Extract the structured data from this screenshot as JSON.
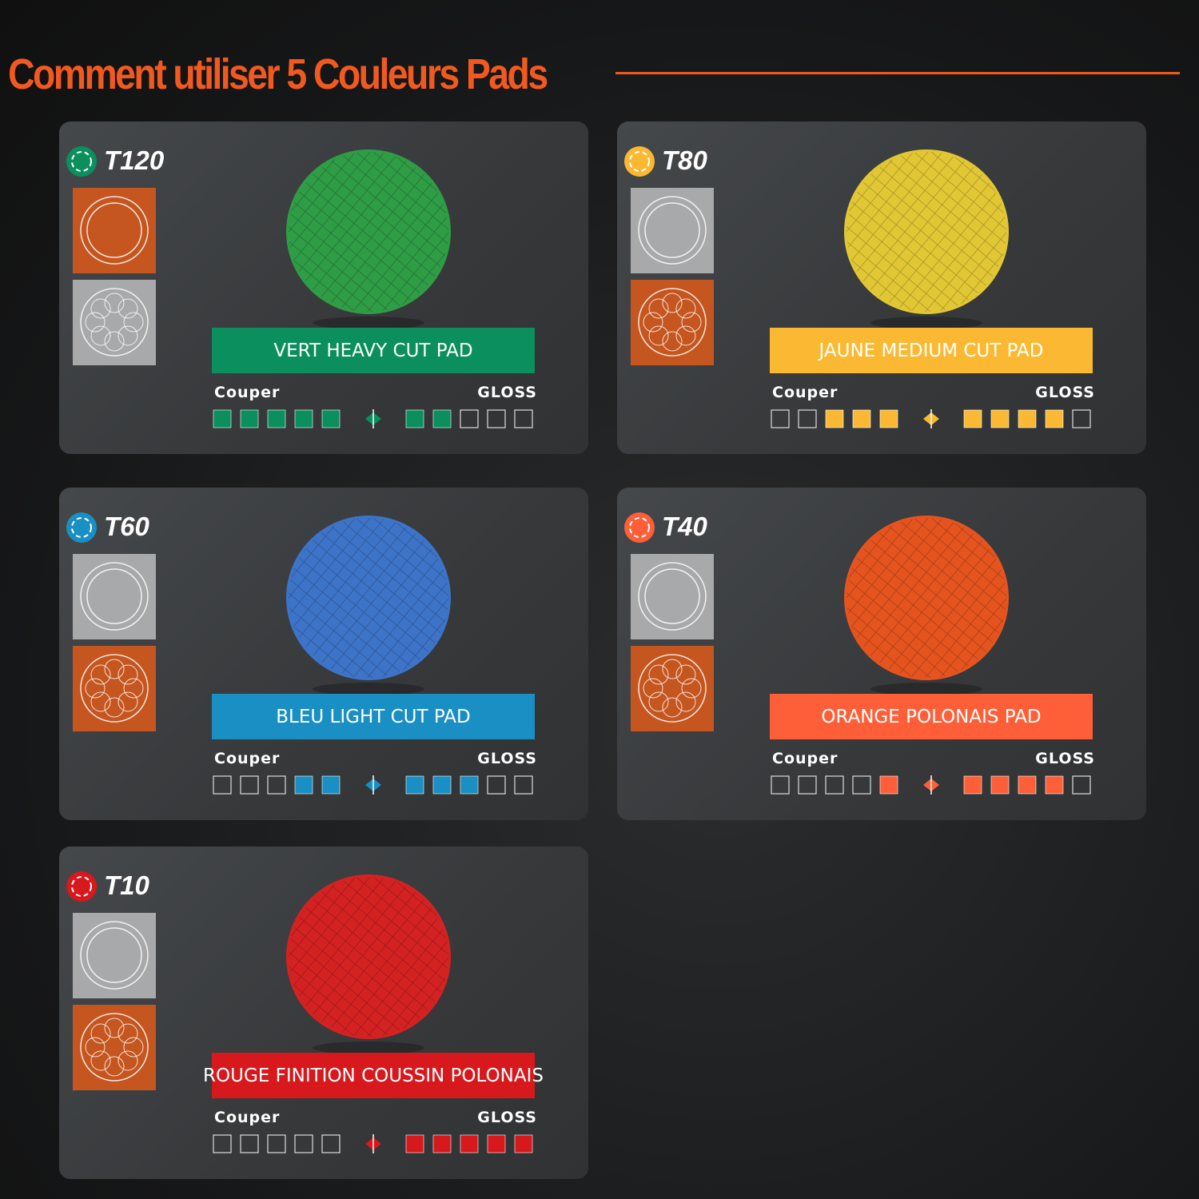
{
  "title": "Comment utiliser 5 Couleurs Pads",
  "scale": {
    "cut_label": "Couper",
    "gloss_label": "GLOSS"
  },
  "pads": [
    {
      "code": "T120",
      "label": "VERT HEAVY CUT PAD",
      "color": "#0b8f5f",
      "pad_color": "#2f9c46",
      "cut": 5,
      "gloss": 2,
      "highlight": "rotary"
    },
    {
      "code": "T80",
      "label": "JAUNE MEDIUM CUT PAD",
      "color": "#fbb933",
      "pad_color": "#e2c734",
      "cut": 3,
      "gloss": 4,
      "highlight": "orbital"
    },
    {
      "code": "T60",
      "label": "BLEU LIGHT CUT PAD",
      "color": "#1a8fc4",
      "pad_color": "#3d74c8",
      "cut": 2,
      "gloss": 3,
      "highlight": "orbital"
    },
    {
      "code": "T40",
      "label": "ORANGE POLONAIS PAD",
      "color": "#fe5f38",
      "pad_color": "#e5541e",
      "cut": 1,
      "gloss": 4,
      "highlight": "orbital"
    },
    {
      "code": "T10",
      "label": "ROUGE FINITION COUSSIN POLONAIS",
      "color": "#d7181c",
      "pad_color": "#d42222",
      "cut": 0,
      "gloss": 5,
      "highlight": "orbital"
    }
  ]
}
